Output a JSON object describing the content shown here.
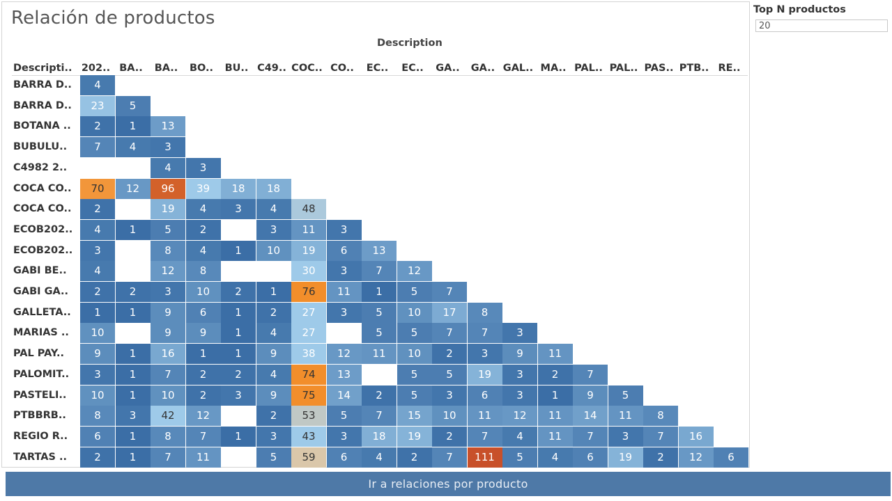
{
  "title": "Relación de productos",
  "filter": {
    "label": "Top N productos",
    "value": "20"
  },
  "nav_button": {
    "label": "Ir a relaciones por producto"
  },
  "colors": {
    "low": "#3b6ea6",
    "mid": "#9ecae9",
    "peach": "#f4c58f",
    "orange": "#f28e2b",
    "high": "#c8502a",
    "button": "#4e79a7"
  },
  "chart_data": {
    "type": "heatmap",
    "column_header_title": "Description",
    "row_header_title": "Descripti..",
    "columns": [
      "202..",
      "BA..",
      "BA..",
      "BO..",
      "BU..",
      "C49..",
      "COC..",
      "CO..",
      "EC..",
      "EC..",
      "GA..",
      "GA..",
      "GAL..",
      "MA..",
      "PAL..",
      "PAL..",
      "PAS..",
      "PTB..",
      "RE.."
    ],
    "rows": [
      "BARRA D..",
      "BARRA D..",
      "BOTANA ..",
      "BUBULU..",
      "C4982 2..",
      "COCA CO..",
      "COCA CO..",
      "ECOB202..",
      "ECOB202..",
      "GABI BE..",
      "GABI GA..",
      "GALLETA..",
      "MARIAS ..",
      "PAL PAY..",
      "PALOMIT..",
      "PASTELI..",
      "PTBBRB..",
      "REGIO R..",
      "TARTAS .."
    ],
    "values": [
      [
        4
      ],
      [
        23,
        5
      ],
      [
        2,
        1,
        13
      ],
      [
        7,
        4,
        3
      ],
      [
        null,
        null,
        4,
        3
      ],
      [
        70,
        12,
        96,
        39,
        18,
        18
      ],
      [
        2,
        null,
        19,
        4,
        3,
        4,
        48
      ],
      [
        4,
        1,
        5,
        2,
        null,
        3,
        11,
        3
      ],
      [
        3,
        null,
        8,
        4,
        1,
        10,
        19,
        6,
        13
      ],
      [
        4,
        null,
        12,
        8,
        null,
        null,
        30,
        3,
        7,
        12
      ],
      [
        2,
        2,
        3,
        10,
        2,
        1,
        76,
        11,
        1,
        5,
        7
      ],
      [
        1,
        1,
        9,
        6,
        1,
        2,
        27,
        3,
        5,
        10,
        17,
        8
      ],
      [
        10,
        null,
        9,
        9,
        1,
        4,
        27,
        null,
        5,
        5,
        7,
        7,
        3
      ],
      [
        9,
        1,
        16,
        1,
        1,
        9,
        38,
        12,
        11,
        10,
        2,
        3,
        9,
        11
      ],
      [
        3,
        1,
        7,
        2,
        2,
        4,
        74,
        13,
        null,
        5,
        5,
        19,
        3,
        2,
        7
      ],
      [
        10,
        1,
        10,
        2,
        3,
        9,
        75,
        14,
        2,
        5,
        3,
        6,
        3,
        1,
        9,
        5
      ],
      [
        8,
        3,
        42,
        12,
        null,
        2,
        53,
        5,
        7,
        15,
        10,
        11,
        12,
        11,
        14,
        11,
        8
      ],
      [
        6,
        1,
        8,
        7,
        1,
        3,
        43,
        3,
        18,
        19,
        2,
        7,
        4,
        11,
        7,
        3,
        7,
        16
      ],
      [
        2,
        1,
        7,
        11,
        null,
        5,
        59,
        6,
        4,
        2,
        7,
        111,
        5,
        4,
        6,
        19,
        2,
        12,
        6
      ]
    ],
    "value_range": [
      1,
      111
    ]
  }
}
